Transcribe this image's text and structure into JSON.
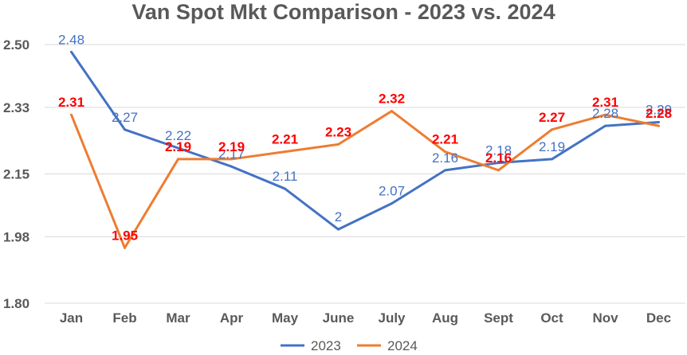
{
  "chart_data": {
    "type": "line",
    "title": "Van Spot Mkt Comparison - 2023 vs. 2024",
    "categories": [
      "Jan",
      "Feb",
      "Mar",
      "Apr",
      "May",
      "June",
      "July",
      "Aug",
      "Sept",
      "Oct",
      "Nov",
      "Dec"
    ],
    "y_ticks": [
      "2.50",
      "2.33",
      "2.15",
      "1.98",
      "1.80"
    ],
    "ylim": [
      1.8,
      2.5
    ],
    "grid": true,
    "legend_position": "bottom",
    "series": [
      {
        "name": "2023",
        "color": "#4472C4",
        "label_color": "#4472C4",
        "values": [
          2.48,
          2.27,
          2.22,
          2.17,
          2.11,
          2.0,
          2.07,
          2.16,
          2.18,
          2.19,
          2.28,
          2.29
        ],
        "labels": [
          "2.48",
          "2.27",
          "2.22",
          "2.17",
          "2.11",
          "2",
          "2.07",
          "2.16",
          "2.18",
          "2.19",
          "2.28",
          "2.29"
        ]
      },
      {
        "name": "2024",
        "color": "#ED7D31",
        "label_color": "#FF0000",
        "values": [
          2.31,
          1.95,
          2.19,
          2.19,
          2.21,
          2.23,
          2.32,
          2.21,
          2.16,
          2.27,
          2.31,
          2.28
        ],
        "labels": [
          "2.31",
          "1.95",
          "2.19",
          "2.19",
          "2.21",
          "2.23",
          "2.32",
          "2.21",
          "2.16",
          "2.27",
          "2.31",
          "2.28"
        ]
      }
    ]
  }
}
